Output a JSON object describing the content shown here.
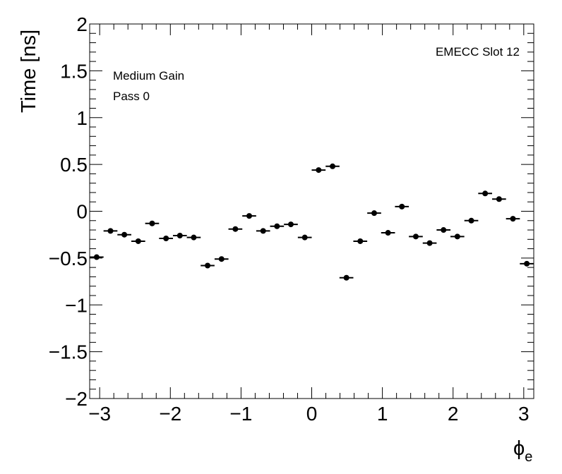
{
  "chart_data": {
    "type": "scatter",
    "xlabel_symbol": "ϕ",
    "xlabel_subscript": "e",
    "ylabel": "Time [ns]",
    "xlim": [
      -3.1416,
      3.1416
    ],
    "ylim": [
      -2,
      2
    ],
    "x_major_ticks": [
      -3,
      -2,
      -1,
      0,
      1,
      2,
      3
    ],
    "x_tick_labels": [
      "−3",
      "−2",
      "−1",
      "0",
      "1",
      "2",
      "3"
    ],
    "y_major_ticks": [
      -2,
      -1.5,
      -1,
      -0.5,
      0,
      0.5,
      1,
      1.5,
      2
    ],
    "y_tick_labels": [
      "−2",
      "−1.5",
      "−1",
      "−0.5",
      "0",
      "0.5",
      "1",
      "1.5",
      "2"
    ],
    "grid": false,
    "annotations": {
      "gain": "Medium Gain",
      "pass": "Pass 0",
      "slot": "EMECC Slot 12"
    },
    "bin_half_width": 0.0982,
    "points": [
      {
        "x": -3.043,
        "y": -0.49
      },
      {
        "x": -2.847,
        "y": -0.21
      },
      {
        "x": -2.651,
        "y": -0.25
      },
      {
        "x": -2.454,
        "y": -0.32
      },
      {
        "x": -2.258,
        "y": -0.13
      },
      {
        "x": -2.061,
        "y": -0.29
      },
      {
        "x": -1.865,
        "y": -0.26
      },
      {
        "x": -1.669,
        "y": -0.28
      },
      {
        "x": -1.473,
        "y": -0.58
      },
      {
        "x": -1.276,
        "y": -0.51
      },
      {
        "x": -1.08,
        "y": -0.19
      },
      {
        "x": -0.884,
        "y": -0.05
      },
      {
        "x": -0.687,
        "y": -0.21
      },
      {
        "x": -0.491,
        "y": -0.16
      },
      {
        "x": -0.295,
        "y": -0.14
      },
      {
        "x": -0.098,
        "y": -0.28
      },
      {
        "x": 0.098,
        "y": 0.44
      },
      {
        "x": 0.295,
        "y": 0.48
      },
      {
        "x": 0.491,
        "y": -0.71
      },
      {
        "x": 0.687,
        "y": -0.32
      },
      {
        "x": 0.884,
        "y": -0.02
      },
      {
        "x": 1.08,
        "y": -0.23
      },
      {
        "x": 1.276,
        "y": 0.05
      },
      {
        "x": 1.473,
        "y": -0.27
      },
      {
        "x": 1.669,
        "y": -0.34
      },
      {
        "x": 1.865,
        "y": -0.2
      },
      {
        "x": 2.061,
        "y": -0.27
      },
      {
        "x": 2.258,
        "y": -0.1
      },
      {
        "x": 2.454,
        "y": 0.19
      },
      {
        "x": 2.651,
        "y": 0.13
      },
      {
        "x": 2.847,
        "y": -0.08
      },
      {
        "x": 3.043,
        "y": -0.56
      }
    ]
  }
}
